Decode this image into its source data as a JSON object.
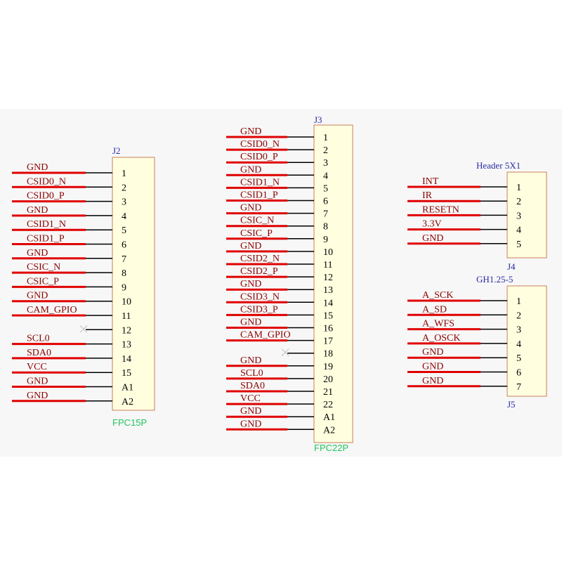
{
  "colors": {
    "wire_red": "#e00000",
    "wire_black": "#000000",
    "net_label": "#8b0000",
    "ref_label": "#2a2aa8",
    "package_label": "#22c55e",
    "body_fill": "#ffffe0",
    "body_stroke": "#c87f5a",
    "panel": "#f7f7f7"
  },
  "connectors": [
    {
      "ref": "J2",
      "package": "FPC15P",
      "pins": [
        {
          "num": "1",
          "net": "GND"
        },
        {
          "num": "2",
          "net": "CSID0_N"
        },
        {
          "num": "3",
          "net": "CSID0_P"
        },
        {
          "num": "4",
          "net": "GND"
        },
        {
          "num": "5",
          "net": "CSID1_N"
        },
        {
          "num": "6",
          "net": "CSID1_P"
        },
        {
          "num": "7",
          "net": "GND"
        },
        {
          "num": "8",
          "net": "CSIC_N"
        },
        {
          "num": "9",
          "net": "CSIC_P"
        },
        {
          "num": "10",
          "net": "GND"
        },
        {
          "num": "11",
          "net": "CAM_GPIO"
        },
        {
          "num": "12",
          "net": ""
        },
        {
          "num": "13",
          "net": "SCL0"
        },
        {
          "num": "14",
          "net": "SDA0"
        },
        {
          "num": "15",
          "net": "VCC"
        },
        {
          "num": "A1",
          "net": "GND"
        },
        {
          "num": "A2",
          "net": "GND"
        }
      ]
    },
    {
      "ref": "J3",
      "package": "FPC22P",
      "pins": [
        {
          "num": "1",
          "net": "GND"
        },
        {
          "num": "2",
          "net": "CSID0_N"
        },
        {
          "num": "3",
          "net": "CSID0_P"
        },
        {
          "num": "4",
          "net": "GND"
        },
        {
          "num": "5",
          "net": "CSID1_N"
        },
        {
          "num": "6",
          "net": "CSID1_P"
        },
        {
          "num": "7",
          "net": "GND"
        },
        {
          "num": "8",
          "net": "CSIC_N"
        },
        {
          "num": "9",
          "net": "CSIC_P"
        },
        {
          "num": "10",
          "net": "GND"
        },
        {
          "num": "11",
          "net": "CSID2_N"
        },
        {
          "num": "12",
          "net": "CSID2_P"
        },
        {
          "num": "13",
          "net": "GND"
        },
        {
          "num": "14",
          "net": "CSID3_N"
        },
        {
          "num": "15",
          "net": "CSID3_P"
        },
        {
          "num": "16",
          "net": "GND"
        },
        {
          "num": "17",
          "net": "CAM_GPIO"
        },
        {
          "num": "18",
          "net": ""
        },
        {
          "num": "19",
          "net": "GND"
        },
        {
          "num": "20",
          "net": "SCL0"
        },
        {
          "num": "21",
          "net": "SDA0"
        },
        {
          "num": "22",
          "net": "VCC"
        },
        {
          "num": "A1",
          "net": "GND"
        },
        {
          "num": "A2",
          "net": "GND"
        }
      ]
    },
    {
      "ref": "J4",
      "package": "Header 5X1",
      "pins": [
        {
          "num": "1",
          "net": "INT"
        },
        {
          "num": "2",
          "net": "IR"
        },
        {
          "num": "3",
          "net": "RESETN"
        },
        {
          "num": "4",
          "net": "3.3V"
        },
        {
          "num": "5",
          "net": "GND"
        }
      ]
    },
    {
      "ref": "J5",
      "package": "GH1.25-5",
      "pins": [
        {
          "num": "1",
          "net": "A_SCK"
        },
        {
          "num": "2",
          "net": "A_SD"
        },
        {
          "num": "3",
          "net": "A_WFS"
        },
        {
          "num": "4",
          "net": "A_OSCK"
        },
        {
          "num": "5",
          "net": "GND"
        },
        {
          "num": "6",
          "net": "GND"
        },
        {
          "num": "7",
          "net": "GND"
        }
      ]
    }
  ]
}
